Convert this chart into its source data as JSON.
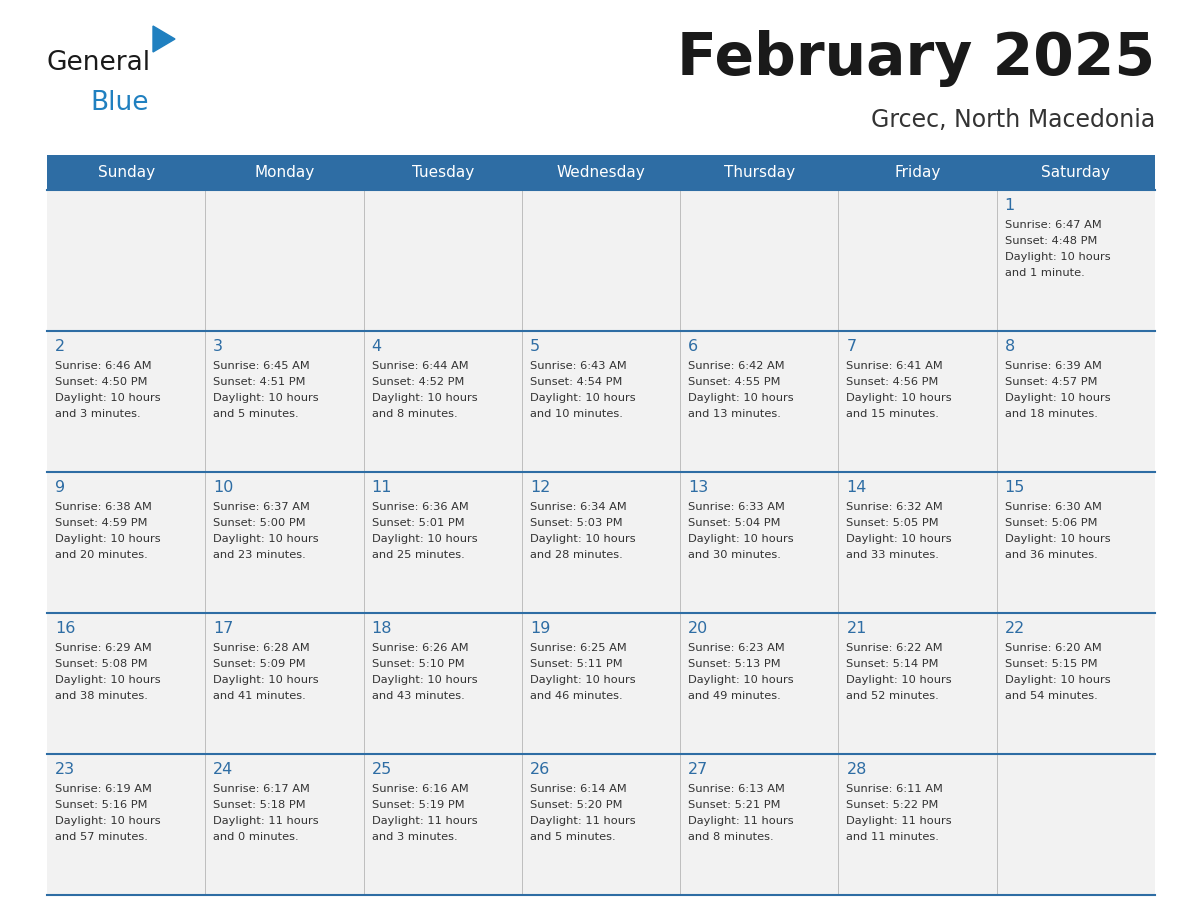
{
  "title": "February 2025",
  "subtitle": "Grcec, North Macedonia",
  "header_bg": "#2E6DA4",
  "header_text_color": "#FFFFFF",
  "cell_bg": "#F2F2F2",
  "cell_bg_white": "#FFFFFF",
  "day_names": [
    "Sunday",
    "Monday",
    "Tuesday",
    "Wednesday",
    "Thursday",
    "Friday",
    "Saturday"
  ],
  "days": [
    {
      "day": 1,
      "col": 6,
      "row": 0,
      "sunrise": "6:47 AM",
      "sunset": "4:48 PM",
      "daylight": "10 hours and 1 minute."
    },
    {
      "day": 2,
      "col": 0,
      "row": 1,
      "sunrise": "6:46 AM",
      "sunset": "4:50 PM",
      "daylight": "10 hours and 3 minutes."
    },
    {
      "day": 3,
      "col": 1,
      "row": 1,
      "sunrise": "6:45 AM",
      "sunset": "4:51 PM",
      "daylight": "10 hours and 5 minutes."
    },
    {
      "day": 4,
      "col": 2,
      "row": 1,
      "sunrise": "6:44 AM",
      "sunset": "4:52 PM",
      "daylight": "10 hours and 8 minutes."
    },
    {
      "day": 5,
      "col": 3,
      "row": 1,
      "sunrise": "6:43 AM",
      "sunset": "4:54 PM",
      "daylight": "10 hours and 10 minutes."
    },
    {
      "day": 6,
      "col": 4,
      "row": 1,
      "sunrise": "6:42 AM",
      "sunset": "4:55 PM",
      "daylight": "10 hours and 13 minutes."
    },
    {
      "day": 7,
      "col": 5,
      "row": 1,
      "sunrise": "6:41 AM",
      "sunset": "4:56 PM",
      "daylight": "10 hours and 15 minutes."
    },
    {
      "day": 8,
      "col": 6,
      "row": 1,
      "sunrise": "6:39 AM",
      "sunset": "4:57 PM",
      "daylight": "10 hours and 18 minutes."
    },
    {
      "day": 9,
      "col": 0,
      "row": 2,
      "sunrise": "6:38 AM",
      "sunset": "4:59 PM",
      "daylight": "10 hours and 20 minutes."
    },
    {
      "day": 10,
      "col": 1,
      "row": 2,
      "sunrise": "6:37 AM",
      "sunset": "5:00 PM",
      "daylight": "10 hours and 23 minutes."
    },
    {
      "day": 11,
      "col": 2,
      "row": 2,
      "sunrise": "6:36 AM",
      "sunset": "5:01 PM",
      "daylight": "10 hours and 25 minutes."
    },
    {
      "day": 12,
      "col": 3,
      "row": 2,
      "sunrise": "6:34 AM",
      "sunset": "5:03 PM",
      "daylight": "10 hours and 28 minutes."
    },
    {
      "day": 13,
      "col": 4,
      "row": 2,
      "sunrise": "6:33 AM",
      "sunset": "5:04 PM",
      "daylight": "10 hours and 30 minutes."
    },
    {
      "day": 14,
      "col": 5,
      "row": 2,
      "sunrise": "6:32 AM",
      "sunset": "5:05 PM",
      "daylight": "10 hours and 33 minutes."
    },
    {
      "day": 15,
      "col": 6,
      "row": 2,
      "sunrise": "6:30 AM",
      "sunset": "5:06 PM",
      "daylight": "10 hours and 36 minutes."
    },
    {
      "day": 16,
      "col": 0,
      "row": 3,
      "sunrise": "6:29 AM",
      "sunset": "5:08 PM",
      "daylight": "10 hours and 38 minutes."
    },
    {
      "day": 17,
      "col": 1,
      "row": 3,
      "sunrise": "6:28 AM",
      "sunset": "5:09 PM",
      "daylight": "10 hours and 41 minutes."
    },
    {
      "day": 18,
      "col": 2,
      "row": 3,
      "sunrise": "6:26 AM",
      "sunset": "5:10 PM",
      "daylight": "10 hours and 43 minutes."
    },
    {
      "day": 19,
      "col": 3,
      "row": 3,
      "sunrise": "6:25 AM",
      "sunset": "5:11 PM",
      "daylight": "10 hours and 46 minutes."
    },
    {
      "day": 20,
      "col": 4,
      "row": 3,
      "sunrise": "6:23 AM",
      "sunset": "5:13 PM",
      "daylight": "10 hours and 49 minutes."
    },
    {
      "day": 21,
      "col": 5,
      "row": 3,
      "sunrise": "6:22 AM",
      "sunset": "5:14 PM",
      "daylight": "10 hours and 52 minutes."
    },
    {
      "day": 22,
      "col": 6,
      "row": 3,
      "sunrise": "6:20 AM",
      "sunset": "5:15 PM",
      "daylight": "10 hours and 54 minutes."
    },
    {
      "day": 23,
      "col": 0,
      "row": 4,
      "sunrise": "6:19 AM",
      "sunset": "5:16 PM",
      "daylight": "10 hours and 57 minutes."
    },
    {
      "day": 24,
      "col": 1,
      "row": 4,
      "sunrise": "6:17 AM",
      "sunset": "5:18 PM",
      "daylight": "11 hours and 0 minutes."
    },
    {
      "day": 25,
      "col": 2,
      "row": 4,
      "sunrise": "6:16 AM",
      "sunset": "5:19 PM",
      "daylight": "11 hours and 3 minutes."
    },
    {
      "day": 26,
      "col": 3,
      "row": 4,
      "sunrise": "6:14 AM",
      "sunset": "5:20 PM",
      "daylight": "11 hours and 5 minutes."
    },
    {
      "day": 27,
      "col": 4,
      "row": 4,
      "sunrise": "6:13 AM",
      "sunset": "5:21 PM",
      "daylight": "11 hours and 8 minutes."
    },
    {
      "day": 28,
      "col": 5,
      "row": 4,
      "sunrise": "6:11 AM",
      "sunset": "5:22 PM",
      "daylight": "11 hours and 11 minutes."
    }
  ],
  "logo_color1": "#1a1a1a",
  "logo_color2": "#2080C0",
  "logo_triangle_color": "#2080C0",
  "title_color": "#1a1a1a",
  "subtitle_color": "#333333",
  "day_number_color": "#2E6DA4",
  "cell_text_color": "#333333",
  "separator_line_color": "#2E6DA4",
  "grid_line_color": "#AAAAAA"
}
